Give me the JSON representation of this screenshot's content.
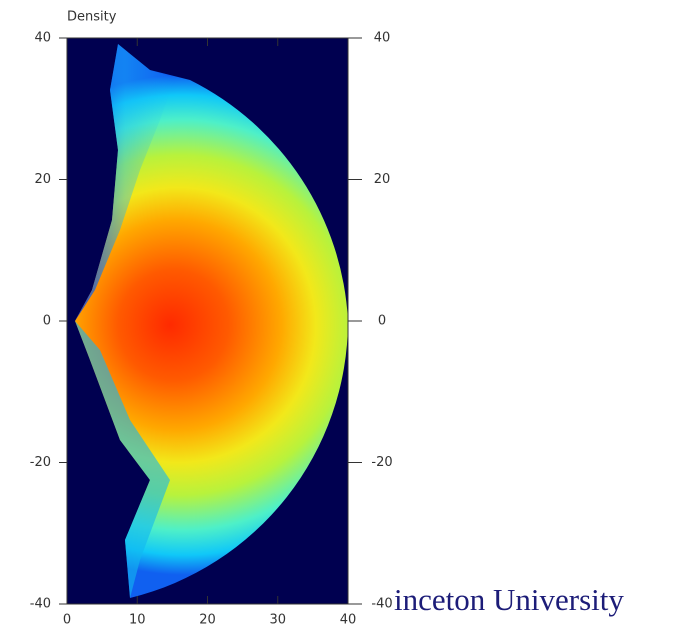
{
  "chart_data": {
    "type": "heatmap",
    "title": "Density",
    "xlim": [
      0,
      40
    ],
    "xticks": [
      0,
      10,
      20,
      30,
      40
    ],
    "ylim": [
      -40,
      40
    ],
    "yticks": [
      -40,
      -20,
      0,
      20,
      40
    ],
    "y2lim": [
      -40,
      40
    ],
    "y2ticks": [
      -40,
      -20,
      0,
      20,
      40
    ]
  },
  "overlay_text": "inceton University"
}
